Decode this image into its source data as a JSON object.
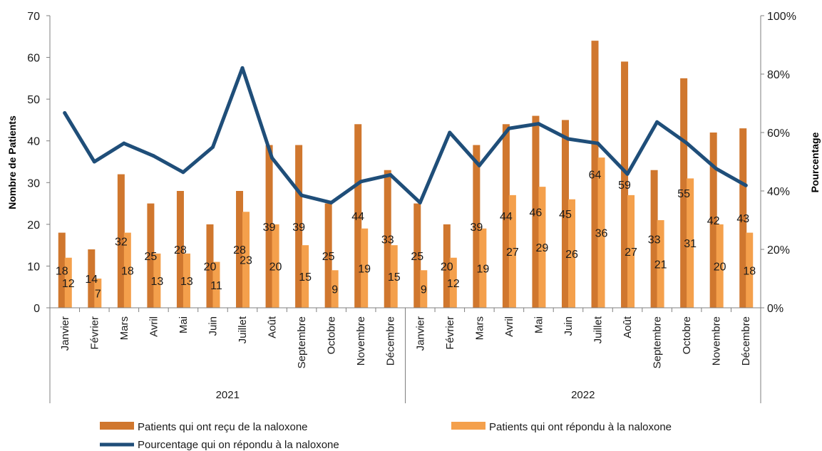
{
  "chart_data": {
    "type": "bar",
    "categories": [
      "Janvier",
      "Février",
      "Mars",
      "Avril",
      "Mai",
      "Juin",
      "Juillet",
      "Août",
      "Septembre",
      "Octobre",
      "Novembre",
      "Décembre",
      "Janvier",
      "Février",
      "Mars",
      "Avril",
      "Mai",
      "Juin",
      "Juillet",
      "Août",
      "Septembre",
      "Octobre",
      "Novembre",
      "Décembre"
    ],
    "groups": [
      {
        "label": "2021",
        "count": 12
      },
      {
        "label": "2022",
        "count": 12
      }
    ],
    "series": [
      {
        "name": "Patients qui ont reçu de la naloxone",
        "type": "bar",
        "axis": "left",
        "color": "#d0772e",
        "values": [
          18,
          14,
          32,
          25,
          28,
          20,
          28,
          39,
          39,
          25,
          44,
          33,
          25,
          20,
          39,
          44,
          46,
          45,
          64,
          59,
          33,
          55,
          42,
          43
        ]
      },
      {
        "name": "Patients qui ont répondu à la naloxone",
        "type": "bar",
        "axis": "left",
        "color": "#f4a04c",
        "values": [
          12,
          7,
          18,
          13,
          13,
          11,
          23,
          20,
          15,
          9,
          19,
          15,
          9,
          12,
          19,
          27,
          29,
          26,
          36,
          27,
          21,
          31,
          20,
          18
        ]
      },
      {
        "name": "Pourcentage qui on répondu à la naloxone",
        "type": "line",
        "axis": "right",
        "color": "#1f4e79",
        "values": [
          66.7,
          50.0,
          56.3,
          52.0,
          46.4,
          55.0,
          82.1,
          51.3,
          38.5,
          36.0,
          43.2,
          45.5,
          36.0,
          60.0,
          48.7,
          61.4,
          63.0,
          57.8,
          56.3,
          45.8,
          63.6,
          56.4,
          47.6,
          41.9
        ]
      }
    ],
    "ylabel": "Nombre de Patients",
    "y2label": "Pourcentage",
    "ylim": [
      0,
      70
    ],
    "y2lim": [
      0,
      100
    ],
    "yticks": [
      "0",
      "10",
      "20",
      "30",
      "40",
      "50",
      "60",
      "70"
    ],
    "y2ticks": [
      "0%",
      "20%",
      "40%",
      "60%",
      "80%",
      "100%"
    ],
    "grid": false,
    "legend_position": "bottom"
  }
}
